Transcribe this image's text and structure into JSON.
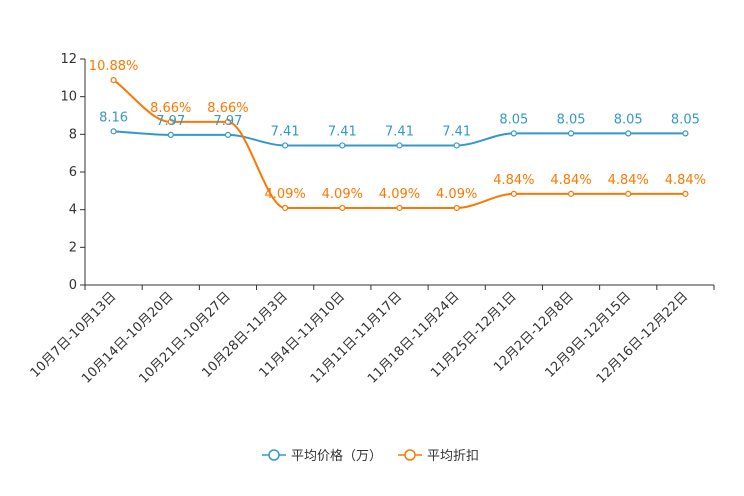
{
  "chart_data": {
    "type": "line",
    "title": "",
    "xlabel": "",
    "ylabel": "",
    "ylim": [
      0,
      12
    ],
    "yticks": [
      0,
      2,
      4,
      6,
      8,
      10,
      12
    ],
    "grid": false,
    "legend_position": "bottom-center",
    "categories": [
      "10月7日-10月13日",
      "10月14日-10月20日",
      "10月21日-10月27日",
      "10月28日-11月3日",
      "11月4日-11月10日",
      "11月11日-11月17日",
      "11月18日-11月24日",
      "11月25日-12月1日",
      "12月2日-12月8日",
      "12月9日-12月15日",
      "12月16日-12月22日"
    ],
    "series": [
      {
        "name": "平均价格（万）",
        "color": "#3399cc",
        "values": [
          8.16,
          7.97,
          7.97,
          7.41,
          7.41,
          7.41,
          7.41,
          8.05,
          8.05,
          8.05,
          8.05
        ],
        "labels": [
          "8.16",
          "7.97",
          "7.97",
          "7.41",
          "7.41",
          "7.41",
          "7.41",
          "8.05",
          "8.05",
          "8.05",
          "8.05"
        ]
      },
      {
        "name": "平均折扣",
        "color": "#ff7700",
        "values": [
          10.88,
          8.66,
          8.66,
          4.09,
          4.09,
          4.09,
          4.09,
          4.84,
          4.84,
          4.84,
          4.84
        ],
        "labels": [
          "10.88%",
          "8.66%",
          "8.66%",
          "4.09%",
          "4.09%",
          "4.09%",
          "4.09%",
          "4.84%",
          "4.84%",
          "4.84%",
          "4.84%"
        ]
      }
    ]
  }
}
